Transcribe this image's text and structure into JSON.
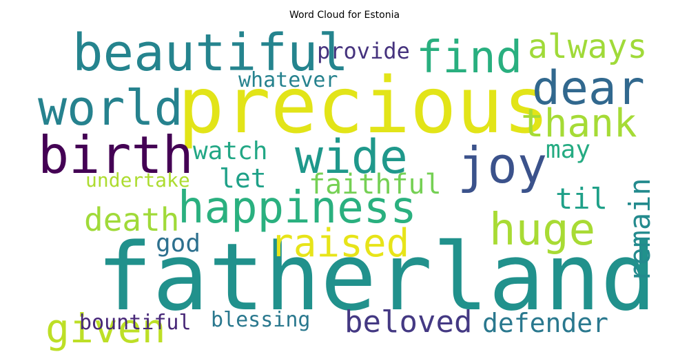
{
  "title": "Word Cloud for Estonia",
  "words": [
    {
      "text": "fatherland",
      "color": "#21918c"
    },
    {
      "text": "precious",
      "color": "#e2e418"
    },
    {
      "text": "beautiful",
      "color": "#25848e"
    },
    {
      "text": "world",
      "color": "#26828e"
    },
    {
      "text": "birth",
      "color": "#440154"
    },
    {
      "text": "happiness",
      "color": "#2ab07f"
    },
    {
      "text": "find",
      "color": "#29af7f"
    },
    {
      "text": "dear",
      "color": "#31688e"
    },
    {
      "text": "always",
      "color": "#a0da39"
    },
    {
      "text": "thank",
      "color": "#a5db36"
    },
    {
      "text": "wide",
      "color": "#1f988b"
    },
    {
      "text": "joy",
      "color": "#3b528b"
    },
    {
      "text": "huge",
      "color": "#a8db34"
    },
    {
      "text": "raised",
      "color": "#e7e419"
    },
    {
      "text": "given",
      "color": "#bddf26"
    },
    {
      "text": "remain",
      "color": "#238a8d"
    },
    {
      "text": "provide",
      "color": "#46337e"
    },
    {
      "text": "whatever",
      "color": "#26828e"
    },
    {
      "text": "watch",
      "color": "#22a785"
    },
    {
      "text": "may",
      "color": "#25ab82"
    },
    {
      "text": "let",
      "color": "#1fa188"
    },
    {
      "text": "faithful",
      "color": "#75d054"
    },
    {
      "text": "undertake",
      "color": "#addc30"
    },
    {
      "text": "death",
      "color": "#a0da39"
    },
    {
      "text": "til",
      "color": "#1fa088"
    },
    {
      "text": "god",
      "color": "#2d708e"
    },
    {
      "text": "bountiful",
      "color": "#482878"
    },
    {
      "text": "blessing",
      "color": "#2a788e"
    },
    {
      "text": "beloved",
      "color": "#443983"
    },
    {
      "text": "defender",
      "color": "#2a788e"
    }
  ]
}
